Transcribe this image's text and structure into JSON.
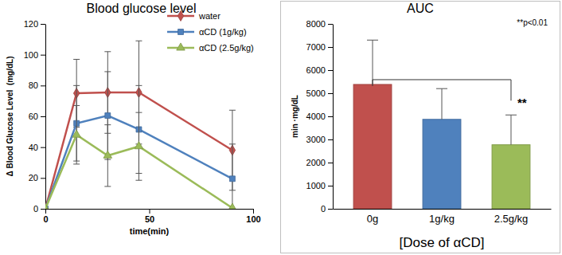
{
  "chart_data": [
    {
      "type": "line",
      "title": "Blood glucose level",
      "x_label": "time(min)",
      "y_label": "Δ Blood Glucose Level  (mg/dL)",
      "x": [
        0,
        15,
        30,
        45,
        90
      ],
      "xlim": [
        0,
        100
      ],
      "xticks": [
        0,
        50,
        100
      ],
      "ylim": [
        0,
        120
      ],
      "yticks": [
        0,
        20,
        40,
        60,
        80,
        100,
        120
      ],
      "legend": "upper right",
      "grid": false,
      "series": [
        {
          "name": "water",
          "color": "#c0504d",
          "marker": "diamond",
          "values": [
            0,
            75,
            75.5,
            75.5,
            38
          ],
          "errors": [
            0,
            22,
            26.5,
            33.5,
            26
          ]
        },
        {
          "name": "αCD (1g/kg)",
          "color": "#4f81bd",
          "marker": "square",
          "values": [
            0,
            55.5,
            60.5,
            51.5,
            19.5
          ],
          "errors": [
            0,
            24.5,
            28.5,
            28.5,
            22.5
          ]
        },
        {
          "name": "αCD (2.5g/kg)",
          "color": "#9bbb59",
          "marker": "triangle",
          "values": [
            0,
            48,
            34.5,
            40.5,
            0.5
          ],
          "errors": [
            0,
            19,
            20,
            22,
            0
          ]
        }
      ]
    },
    {
      "type": "bar",
      "title": "AUC",
      "x_label": "[Dose of αCD]",
      "y_label": "min ·mg/dL",
      "categories": [
        "0g",
        "1g/kg",
        "2.5g/kg"
      ],
      "ylim": [
        0,
        8000
      ],
      "yticks": [
        0,
        1000,
        2000,
        3000,
        4000,
        5000,
        6000,
        7000,
        8000
      ],
      "grid": false,
      "colors": [
        "#c0504d",
        "#4f81bd",
        "#9bbb59"
      ],
      "values": [
        5380,
        3870,
        2770
      ],
      "errors": [
        1920,
        1330,
        1290
      ],
      "annotations": [
        "**p<0.01",
        "**"
      ]
    }
  ]
}
